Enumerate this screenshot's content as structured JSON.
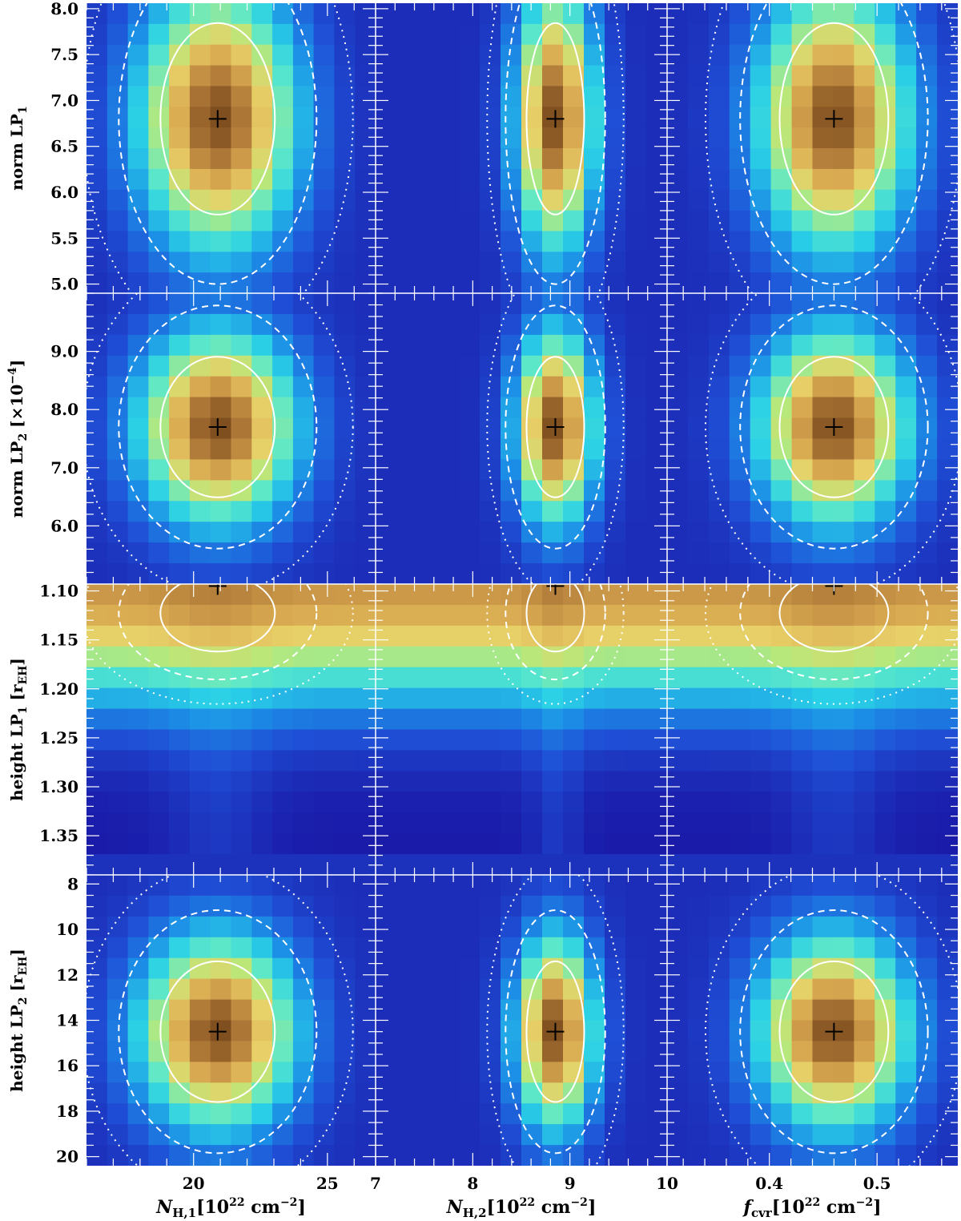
{
  "chart_data": {
    "type": "heatmap",
    "title": "",
    "description": "Corner-plot grid of 2D posterior probability maps with 1-, 2- and 3-sigma contours and best-fit markers",
    "columns": [
      {
        "xlabel": "N_H,1 [10^22 cm^-2]",
        "xlabel_main": "N",
        "xlabel_sub": "H,1",
        "xlabel_unit": "[10",
        "xlabel_exp": "22",
        "xlabel_tail": " cm",
        "xlabel_tail_exp": "−2",
        "xlabel_end": "]",
        "xlim": [
          16.0,
          26.8
        ],
        "ticks": [
          20,
          25
        ],
        "tick_labels": [
          "20",
          "25"
        ],
        "best": 20.9
      },
      {
        "xlabel": "N_H,2 [10^22 cm^-2]",
        "xlabel_main": "N",
        "xlabel_sub": "H,2",
        "xlabel_unit": "[10",
        "xlabel_exp": "22",
        "xlabel_tail": " cm",
        "xlabel_tail_exp": "−2",
        "xlabel_end": "]",
        "xlim": [
          7.0,
          10.0
        ],
        "ticks": [
          7,
          8,
          9,
          10
        ],
        "tick_labels": [
          "7",
          "8",
          "9",
          "10"
        ],
        "best": 8.85
      },
      {
        "xlabel": "f_cvr [10^22 cm^-2]",
        "xlabel_main": "f",
        "xlabel_sub": "cvr",
        "xlabel_unit": "[10",
        "xlabel_exp": "22",
        "xlabel_tail": " cm",
        "xlabel_tail_exp": "−2",
        "xlabel_end": "]",
        "xlim": [
          0.305,
          0.575
        ],
        "ticks": [
          0.4,
          0.5
        ],
        "tick_labels": [
          "0.4",
          "0.5"
        ],
        "best": 0.46
      }
    ],
    "rows": [
      {
        "ylabel": "norm LP_1",
        "ylabel_main": "norm LP",
        "ylabel_sub": "1",
        "ylabel_extra": "",
        "ylim": [
          4.9,
          8.06
        ],
        "inverted": false,
        "ticks": [
          5.0,
          5.5,
          6.0,
          6.5,
          7.0,
          7.5,
          8.0
        ],
        "tick_labels": [
          "5.0",
          "5.5",
          "6.0",
          "6.5",
          "7.0",
          "7.5",
          "8.0"
        ],
        "best": 6.8
      },
      {
        "ylabel": "norm LP_2 [x10^-4]",
        "ylabel_main": "norm LP",
        "ylabel_sub": "2",
        "ylabel_extra": "[×10",
        "ylabel_exp": "−4",
        "ylabel_end": "]",
        "ylim": [
          5.0,
          10.0
        ],
        "inverted": false,
        "ticks": [
          6.0,
          7.0,
          8.0,
          9.0
        ],
        "tick_labels": [
          "6.0",
          "7.0",
          "8.0",
          "9.0"
        ],
        "best": 7.7
      },
      {
        "ylabel": "height LP_1 [r_EH]",
        "ylabel_main": "height LP",
        "ylabel_sub": "1",
        "ylabel_extra": "[r",
        "ylabel_rsub": "EH",
        "ylabel_end": "]",
        "ylim": [
          1.093,
          1.39
        ],
        "inverted": true,
        "ticks": [
          1.1,
          1.15,
          1.2,
          1.25,
          1.3,
          1.35
        ],
        "tick_labels": [
          "1.10",
          "1.15",
          "1.20",
          "1.25",
          "1.30",
          "1.35"
        ],
        "best": 1.095
      },
      {
        "ylabel": "height LP_2 [r_EH]",
        "ylabel_main": "height LP",
        "ylabel_sub": "2",
        "ylabel_extra": "[r",
        "ylabel_rsub": "EH",
        "ylabel_end": "]",
        "ylim": [
          7.6,
          20.4
        ],
        "inverted": true,
        "ticks": [
          8,
          10,
          12,
          14,
          16,
          18,
          20
        ],
        "tick_labels": [
          "8",
          "10",
          "12",
          "14",
          "16",
          "18",
          "20"
        ],
        "best": 14.5
      }
    ],
    "contours": [
      "1-sigma (solid)",
      "2-sigma (dashed)",
      "3-sigma (dotted)"
    ],
    "colormap": [
      "#1a1aa8",
      "#1f4fd6",
      "#1c8ee6",
      "#2ad0e6",
      "#5ee8c8",
      "#b8e87a",
      "#e8d068",
      "#d8a850",
      "#b07a38",
      "#7a4a1c"
    ],
    "best_fit_marker": "+"
  }
}
